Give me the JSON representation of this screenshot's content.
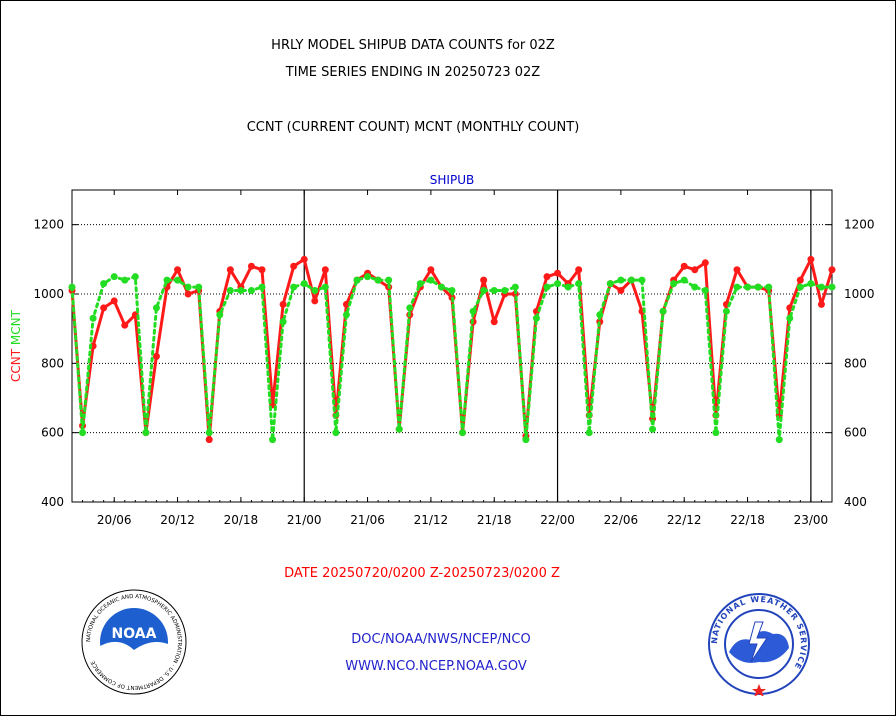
{
  "header": {
    "title_line1": "HRLY MODEL SHIPUB DATA COUNTS for 02Z",
    "title_line2": "TIME SERIES ENDING IN 20250723 02Z",
    "subtitle": "CCNT (CURRENT COUNT) MCNT (MONTHLY COUNT)"
  },
  "footer": {
    "date_range": "DATE 20250720/0200 Z-20250723/0200 Z",
    "link1": "DOC/NOAA/NWS/NCEP/NCO",
    "link2": "WWW.NCO.NCEP.NOAA.GOV"
  },
  "logos": {
    "left_text": "NOAA",
    "left_ring_text": "NATIONAL OCEANIC AND ATMOSPHERIC ADMINISTRATION · U.S. DEPARTMENT OF COMMERCE",
    "right_ring_text": "NATIONAL WEATHER SERVICE"
  },
  "colors": {
    "ccnt": "#ff1a1a",
    "mcnt": "#22dd22",
    "date_text": "#ff0000",
    "link_text": "#2222cc",
    "plot_label": "#0000cc"
  },
  "chart_data": {
    "type": "line",
    "title": "SHIPUB",
    "ylabel_ccnt": "CCNT",
    "ylabel_mcnt": "MCNT",
    "ylim": [
      400,
      1300
    ],
    "yticks": [
      400,
      600,
      800,
      1000,
      1200
    ],
    "x_tick_labels": [
      "20/06",
      "20/12",
      "20/18",
      "21/00",
      "21/06",
      "21/12",
      "21/18",
      "22/00",
      "22/06",
      "22/12",
      "22/18",
      "23/00"
    ],
    "day_boundaries": [
      "21/00",
      "22/00",
      "23/00"
    ],
    "grid": "horizontal dotted",
    "x_start": "20/02",
    "x_end": "23/02",
    "series": [
      {
        "name": "CCNT",
        "values": [
          1010,
          620,
          850,
          960,
          980,
          910,
          940,
          600,
          820,
          1020,
          1070,
          1000,
          1010,
          580,
          950,
          1070,
          1020,
          1080,
          1070,
          680,
          970,
          1080,
          1100,
          980,
          1070,
          650,
          970,
          1040,
          1060,
          1040,
          1020,
          610,
          940,
          1020,
          1070,
          1020,
          990,
          600,
          920,
          1040,
          920,
          1000,
          1000,
          590,
          950,
          1050,
          1060,
          1030,
          1070,
          650,
          920,
          1030,
          1010,
          1040,
          950,
          640,
          950,
          1040,
          1080,
          1070,
          1090,
          650,
          970,
          1070,
          1020,
          1020,
          1010,
          650,
          960,
          1040,
          1100,
          970,
          1070
        ]
      },
      {
        "name": "MCNT",
        "values": [
          1020,
          600,
          930,
          1030,
          1050,
          1040,
          1050,
          600,
          960,
          1040,
          1040,
          1020,
          1020,
          600,
          940,
          1010,
          1010,
          1010,
          1020,
          580,
          920,
          1020,
          1030,
          1010,
          1020,
          600,
          940,
          1040,
          1050,
          1040,
          1040,
          610,
          960,
          1030,
          1040,
          1020,
          1010,
          600,
          950,
          1010,
          1010,
          1010,
          1020,
          580,
          930,
          1020,
          1030,
          1020,
          1030,
          600,
          940,
          1030,
          1040,
          1040,
          1040,
          610,
          950,
          1030,
          1040,
          1020,
          1010,
          600,
          950,
          1020,
          1020,
          1020,
          1020,
          580,
          930,
          1020,
          1030,
          1020,
          1020
        ]
      }
    ]
  }
}
